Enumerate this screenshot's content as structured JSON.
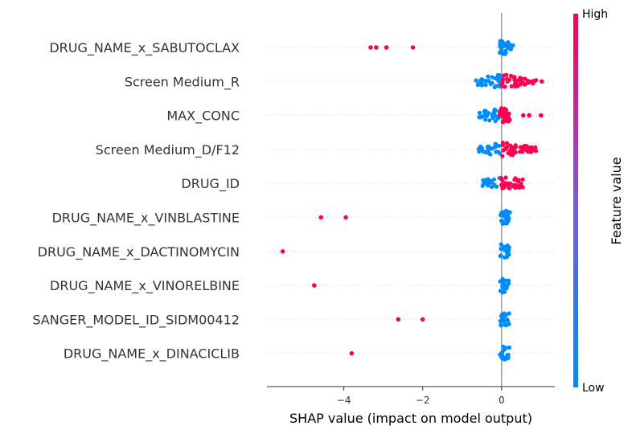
{
  "chart_data": {
    "type": "scatter",
    "subtype": "beeswarm",
    "xlabel": "SHAP value (impact on model output)",
    "xlim": [
      -5.95,
      1.35
    ],
    "xticks": [
      -4,
      -2,
      0
    ],
    "xtick_labels": [
      "−4",
      "−2",
      "0"
    ],
    "colorbar": {
      "title": "Feature value",
      "high_label": "High",
      "low_label": "Low",
      "low_color": "#008bfb",
      "high_color": "#ff0052"
    },
    "grid": false,
    "features": [
      {
        "name": "DRUG_NAME_x_SABUTOCLAX",
        "notable_points": [
          {
            "x": -3.32,
            "v": 1
          },
          {
            "x": -3.18,
            "v": 1
          },
          {
            "x": -2.92,
            "v": 1
          },
          {
            "x": -2.25,
            "v": 1
          }
        ],
        "cluster": {
          "low": [
            [
              -0.05,
              0.05,
              14
            ],
            [
              0.05,
              0.3,
              18
            ]
          ],
          "high": []
        }
      },
      {
        "name": "Screen Medium_R",
        "notable_points": [
          {
            "x": 1.02,
            "v": 1
          }
        ],
        "cluster": {
          "low": [
            [
              -0.65,
              -0.1,
              20
            ],
            [
              -0.1,
              0.0,
              12
            ]
          ],
          "high": [
            [
              0.0,
              0.75,
              40
            ],
            [
              0.75,
              0.9,
              6
            ]
          ]
        }
      },
      {
        "name": "MAX_CONC",
        "notable_points": [
          {
            "x": 0.55,
            "v": 1
          },
          {
            "x": 0.7,
            "v": 1
          },
          {
            "x": 1.0,
            "v": 1
          }
        ],
        "cluster": {
          "low": [
            [
              -0.6,
              -0.1,
              22
            ],
            [
              -0.25,
              -0.05,
              10
            ]
          ],
          "high": [
            [
              -0.05,
              0.22,
              40
            ]
          ]
        }
      },
      {
        "name": "Screen Medium_D/F12",
        "notable_points": [],
        "cluster": {
          "low": [
            [
              -0.58,
              -0.02,
              30
            ]
          ],
          "high": [
            [
              0.02,
              0.9,
              44
            ]
          ]
        }
      },
      {
        "name": "DRUG_ID",
        "notable_points": [],
        "cluster": {
          "low": [
            [
              -0.5,
              -0.05,
              18
            ]
          ],
          "high": [
            [
              -0.05,
              0.55,
              34
            ]
          ]
        }
      },
      {
        "name": "DRUG_NAME_x_VINBLASTINE",
        "notable_points": [
          {
            "x": -4.58,
            "v": 1
          },
          {
            "x": -3.95,
            "v": 1
          }
        ],
        "cluster": {
          "low": [
            [
              -0.03,
              0.22,
              30
            ]
          ],
          "high": []
        }
      },
      {
        "name": "DRUG_NAME_x_DACTINOMYCIN",
        "notable_points": [
          {
            "x": -5.55,
            "v": 1
          }
        ],
        "cluster": {
          "low": [
            [
              -0.04,
              0.2,
              22
            ]
          ],
          "high": []
        }
      },
      {
        "name": "DRUG_NAME_x_VINORELBINE",
        "notable_points": [
          {
            "x": -4.75,
            "v": 1
          }
        ],
        "cluster": {
          "low": [
            [
              -0.04,
              0.2,
              20
            ]
          ],
          "high": []
        }
      },
      {
        "name": "SANGER_MODEL_ID_SIDM00412",
        "notable_points": [
          {
            "x": -2.62,
            "v": 1
          },
          {
            "x": -2.0,
            "v": 1
          }
        ],
        "cluster": {
          "low": [
            [
              -0.04,
              0.2,
              20
            ]
          ],
          "high": []
        }
      },
      {
        "name": "DRUG_NAME_x_DINACICLIB",
        "notable_points": [
          {
            "x": -3.8,
            "v": 1
          }
        ],
        "cluster": {
          "low": [
            [
              -0.04,
              0.2,
              18
            ]
          ],
          "high": []
        }
      }
    ]
  }
}
